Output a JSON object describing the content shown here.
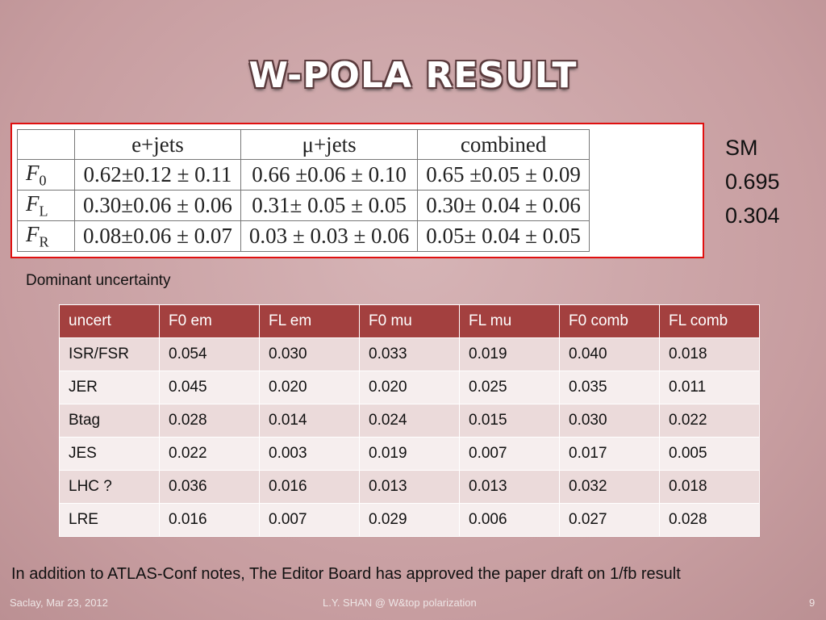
{
  "title": "W-POLA RESULT",
  "result_table": {
    "header": [
      "e+jets",
      "μ+jets",
      "combined"
    ],
    "rows": [
      {
        "symbol": "F",
        "sub": "0",
        "cells": [
          "0.62±0.12 ± 0.11",
          "0.66 ±0.06 ± 0.10",
          "0.65 ±0.05 ± 0.09"
        ]
      },
      {
        "symbol": "F",
        "sub": "L",
        "cells": [
          "0.30±0.06 ± 0.06",
          "0.31± 0.05 ± 0.05",
          "0.30± 0.04 ± 0.06"
        ]
      },
      {
        "symbol": "F",
        "sub": "R",
        "cells": [
          "0.08±0.06 ± 0.07",
          "0.03 ± 0.03 ± 0.06",
          "0.05± 0.04 ± 0.05"
        ]
      }
    ]
  },
  "sm": [
    "SM",
    "0.695",
    "0.304"
  ],
  "caption": "Dominant uncertainty",
  "uncert_table": {
    "header": [
      "uncert",
      "F0 em",
      "FL em",
      "F0  mu",
      "FL mu",
      "F0 comb",
      "FL comb"
    ],
    "rows": [
      [
        "ISR/FSR",
        "0.054",
        "0.030",
        "0.033",
        "0.019",
        "0.040",
        "0.018"
      ],
      [
        "JER",
        "0.045",
        "0.020",
        "0.020",
        "0.025",
        "0.035",
        "0.011"
      ],
      [
        "Btag",
        "0.028",
        "0.014",
        "0.024",
        "0.015",
        "0.030",
        "0.022"
      ],
      [
        "JES",
        "0.022",
        "0.003",
        "0.019",
        "0.007",
        "0.017",
        "0.005"
      ],
      [
        "LHC ?",
        "0.036",
        "0.016",
        "0.013",
        "0.013",
        "0.032",
        "0.018"
      ],
      [
        "LRE",
        "0.016",
        "0.007",
        "0.029",
        "0.006",
        "0.027",
        "0.028"
      ]
    ]
  },
  "note": "In addition to ATLAS-Conf notes, The Editor Board has approved the paper draft on 1/fb result",
  "footer": {
    "left": "Saclay, Mar 23, 2012",
    "center": "L.Y. SHAN @ W&top polarization",
    "right": "9"
  }
}
